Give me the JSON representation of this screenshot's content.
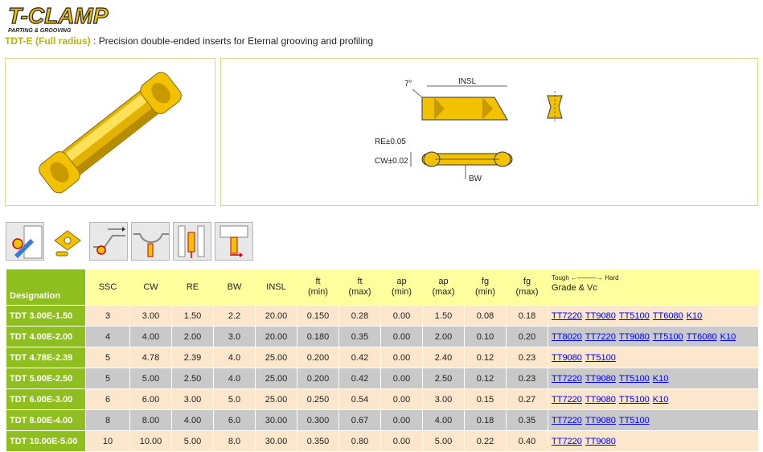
{
  "brand": {
    "logo_text": "T-CLAMP",
    "logo_tagline": "PARTING & GROOVING"
  },
  "header": {
    "series_code": "TDT-E (Full radius)",
    "separator": " : ",
    "description": "Precision double-ended inserts for Eternal grooving and profiling"
  },
  "drawing": {
    "angle_label": "7°",
    "insl_label": "INSL",
    "re_label": "RE±0.05",
    "cw_label": "CW±0.02",
    "bw_label": "BW"
  },
  "colors": {
    "designation_green": "#8fbf1f",
    "header_yellow": "#ffff9e",
    "row_light": "#fce6cc",
    "row_dark": "#c9c9c9",
    "insert_gold": "#f2c200"
  },
  "application_icons": [
    "external-grooving-icon",
    "insert-kit-icon",
    "profiling-icon",
    "wide-grooving-icon",
    "face-grooving-icon",
    "parting-icon"
  ],
  "table": {
    "headers": {
      "designation": "Designation",
      "ssc": "SSC",
      "cw": "CW",
      "re": "RE",
      "bw": "BW",
      "insl": "INSL",
      "ft_min": "ft\n(min)",
      "ft_max": "ft\n(max)",
      "ap_min": "ap\n(min)",
      "ap_max": "ap\n(max)",
      "fg_min": "fg\n(min)",
      "fg_max": "fg\n(max)",
      "tough_hard": "Tough ←———→ Hard",
      "grade_vc": "Grade & Vc"
    },
    "rows": [
      {
        "designation": "TDT 3.00E-1.50",
        "ssc": "3",
        "cw": "3.00",
        "re": "1.50",
        "bw": "2.2",
        "insl": "20.00",
        "ft_min": "0.150",
        "ft_max": "0.28",
        "ap_min": "0.00",
        "ap_max": "1.50",
        "fg_min": "0.08",
        "fg_max": "0.18",
        "grades": [
          "TT7220",
          "TT9080",
          "TT5100",
          "TT6080",
          "K10"
        ]
      },
      {
        "designation": "TDT 4.00E-2.00",
        "ssc": "4",
        "cw": "4.00",
        "re": "2.00",
        "bw": "3.0",
        "insl": "20.00",
        "ft_min": "0.180",
        "ft_max": "0.35",
        "ap_min": "0.00",
        "ap_max": "2.00",
        "fg_min": "0.10",
        "fg_max": "0.20",
        "grades": [
          "TT8020",
          "TT7220",
          "TT9080",
          "TT5100",
          "TT6080",
          "K10"
        ]
      },
      {
        "designation": "TDT 4.78E-2.39",
        "ssc": "5",
        "cw": "4.78",
        "re": "2.39",
        "bw": "4.0",
        "insl": "25.00",
        "ft_min": "0.200",
        "ft_max": "0.42",
        "ap_min": "0.00",
        "ap_max": "2.40",
        "fg_min": "0.12",
        "fg_max": "0.23",
        "grades": [
          "TT9080",
          "TT5100"
        ]
      },
      {
        "designation": "TDT 5.00E-2.50",
        "ssc": "5",
        "cw": "5.00",
        "re": "2.50",
        "bw": "4.0",
        "insl": "25.00",
        "ft_min": "0.200",
        "ft_max": "0.42",
        "ap_min": "0.00",
        "ap_max": "2.50",
        "fg_min": "0.12",
        "fg_max": "0.23",
        "grades": [
          "TT7220",
          "TT9080",
          "TT5100",
          "K10"
        ]
      },
      {
        "designation": "TDT 6.00E-3.00",
        "ssc": "6",
        "cw": "6.00",
        "re": "3.00",
        "bw": "5.0",
        "insl": "25.00",
        "ft_min": "0.250",
        "ft_max": "0.54",
        "ap_min": "0.00",
        "ap_max": "3.00",
        "fg_min": "0.15",
        "fg_max": "0.27",
        "grades": [
          "TT7220",
          "TT9080",
          "TT5100",
          "K10"
        ]
      },
      {
        "designation": "TDT 8.00E-4.00",
        "ssc": "8",
        "cw": "8.00",
        "re": "4.00",
        "bw": "6.0",
        "insl": "30.00",
        "ft_min": "0.300",
        "ft_max": "0.67",
        "ap_min": "0.00",
        "ap_max": "4.00",
        "fg_min": "0.18",
        "fg_max": "0.35",
        "grades": [
          "TT7220",
          "TT9080",
          "TT5100"
        ]
      },
      {
        "designation": "TDT 10.00E-5.00",
        "ssc": "10",
        "cw": "10.00",
        "re": "5.00",
        "bw": "8.0",
        "insl": "30.00",
        "ft_min": "0.350",
        "ft_max": "0.80",
        "ap_min": "0.00",
        "ap_max": "5.00",
        "fg_min": "0.22",
        "fg_max": "0.40",
        "grades": [
          "TT7220",
          "TT9080"
        ]
      }
    ]
  }
}
